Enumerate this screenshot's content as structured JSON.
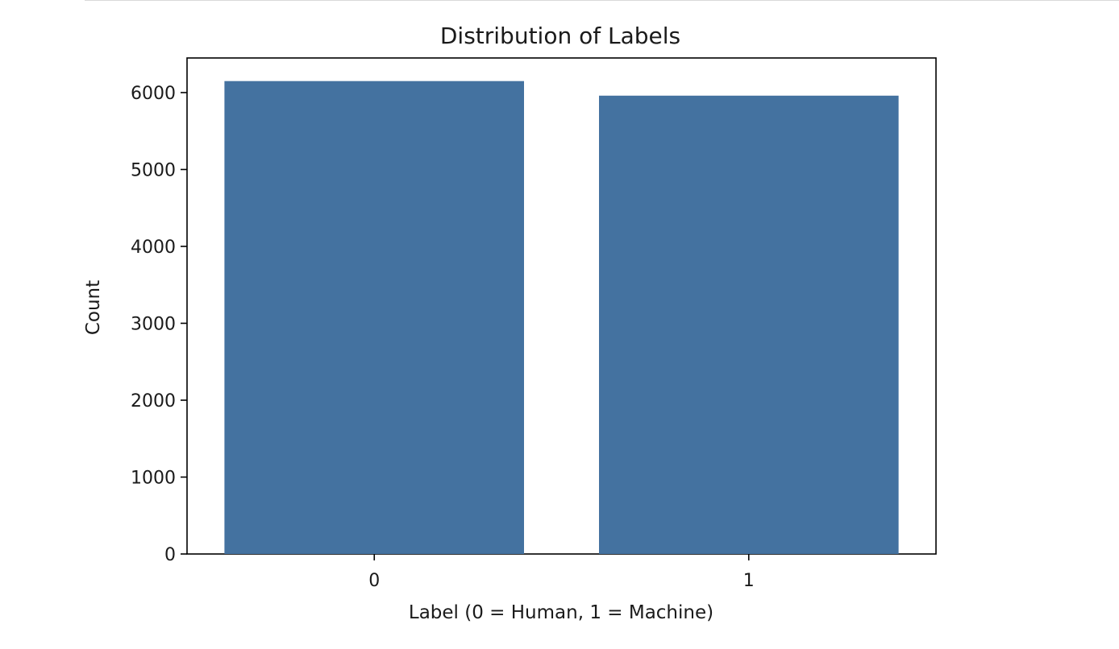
{
  "chart_data": {
    "type": "bar",
    "title": "Distribution of Labels",
    "xlabel": "Label (0 = Human, 1 = Machine)",
    "ylabel": "Count",
    "categories": [
      "0",
      "1"
    ],
    "values": [
      6150,
      5960
    ],
    "ylim": [
      0,
      6450
    ],
    "yticks": [
      0,
      1000,
      2000,
      3000,
      4000,
      5000,
      6000
    ],
    "grid": false,
    "bar_color": "#4472a0",
    "frame_color": "#000000"
  }
}
